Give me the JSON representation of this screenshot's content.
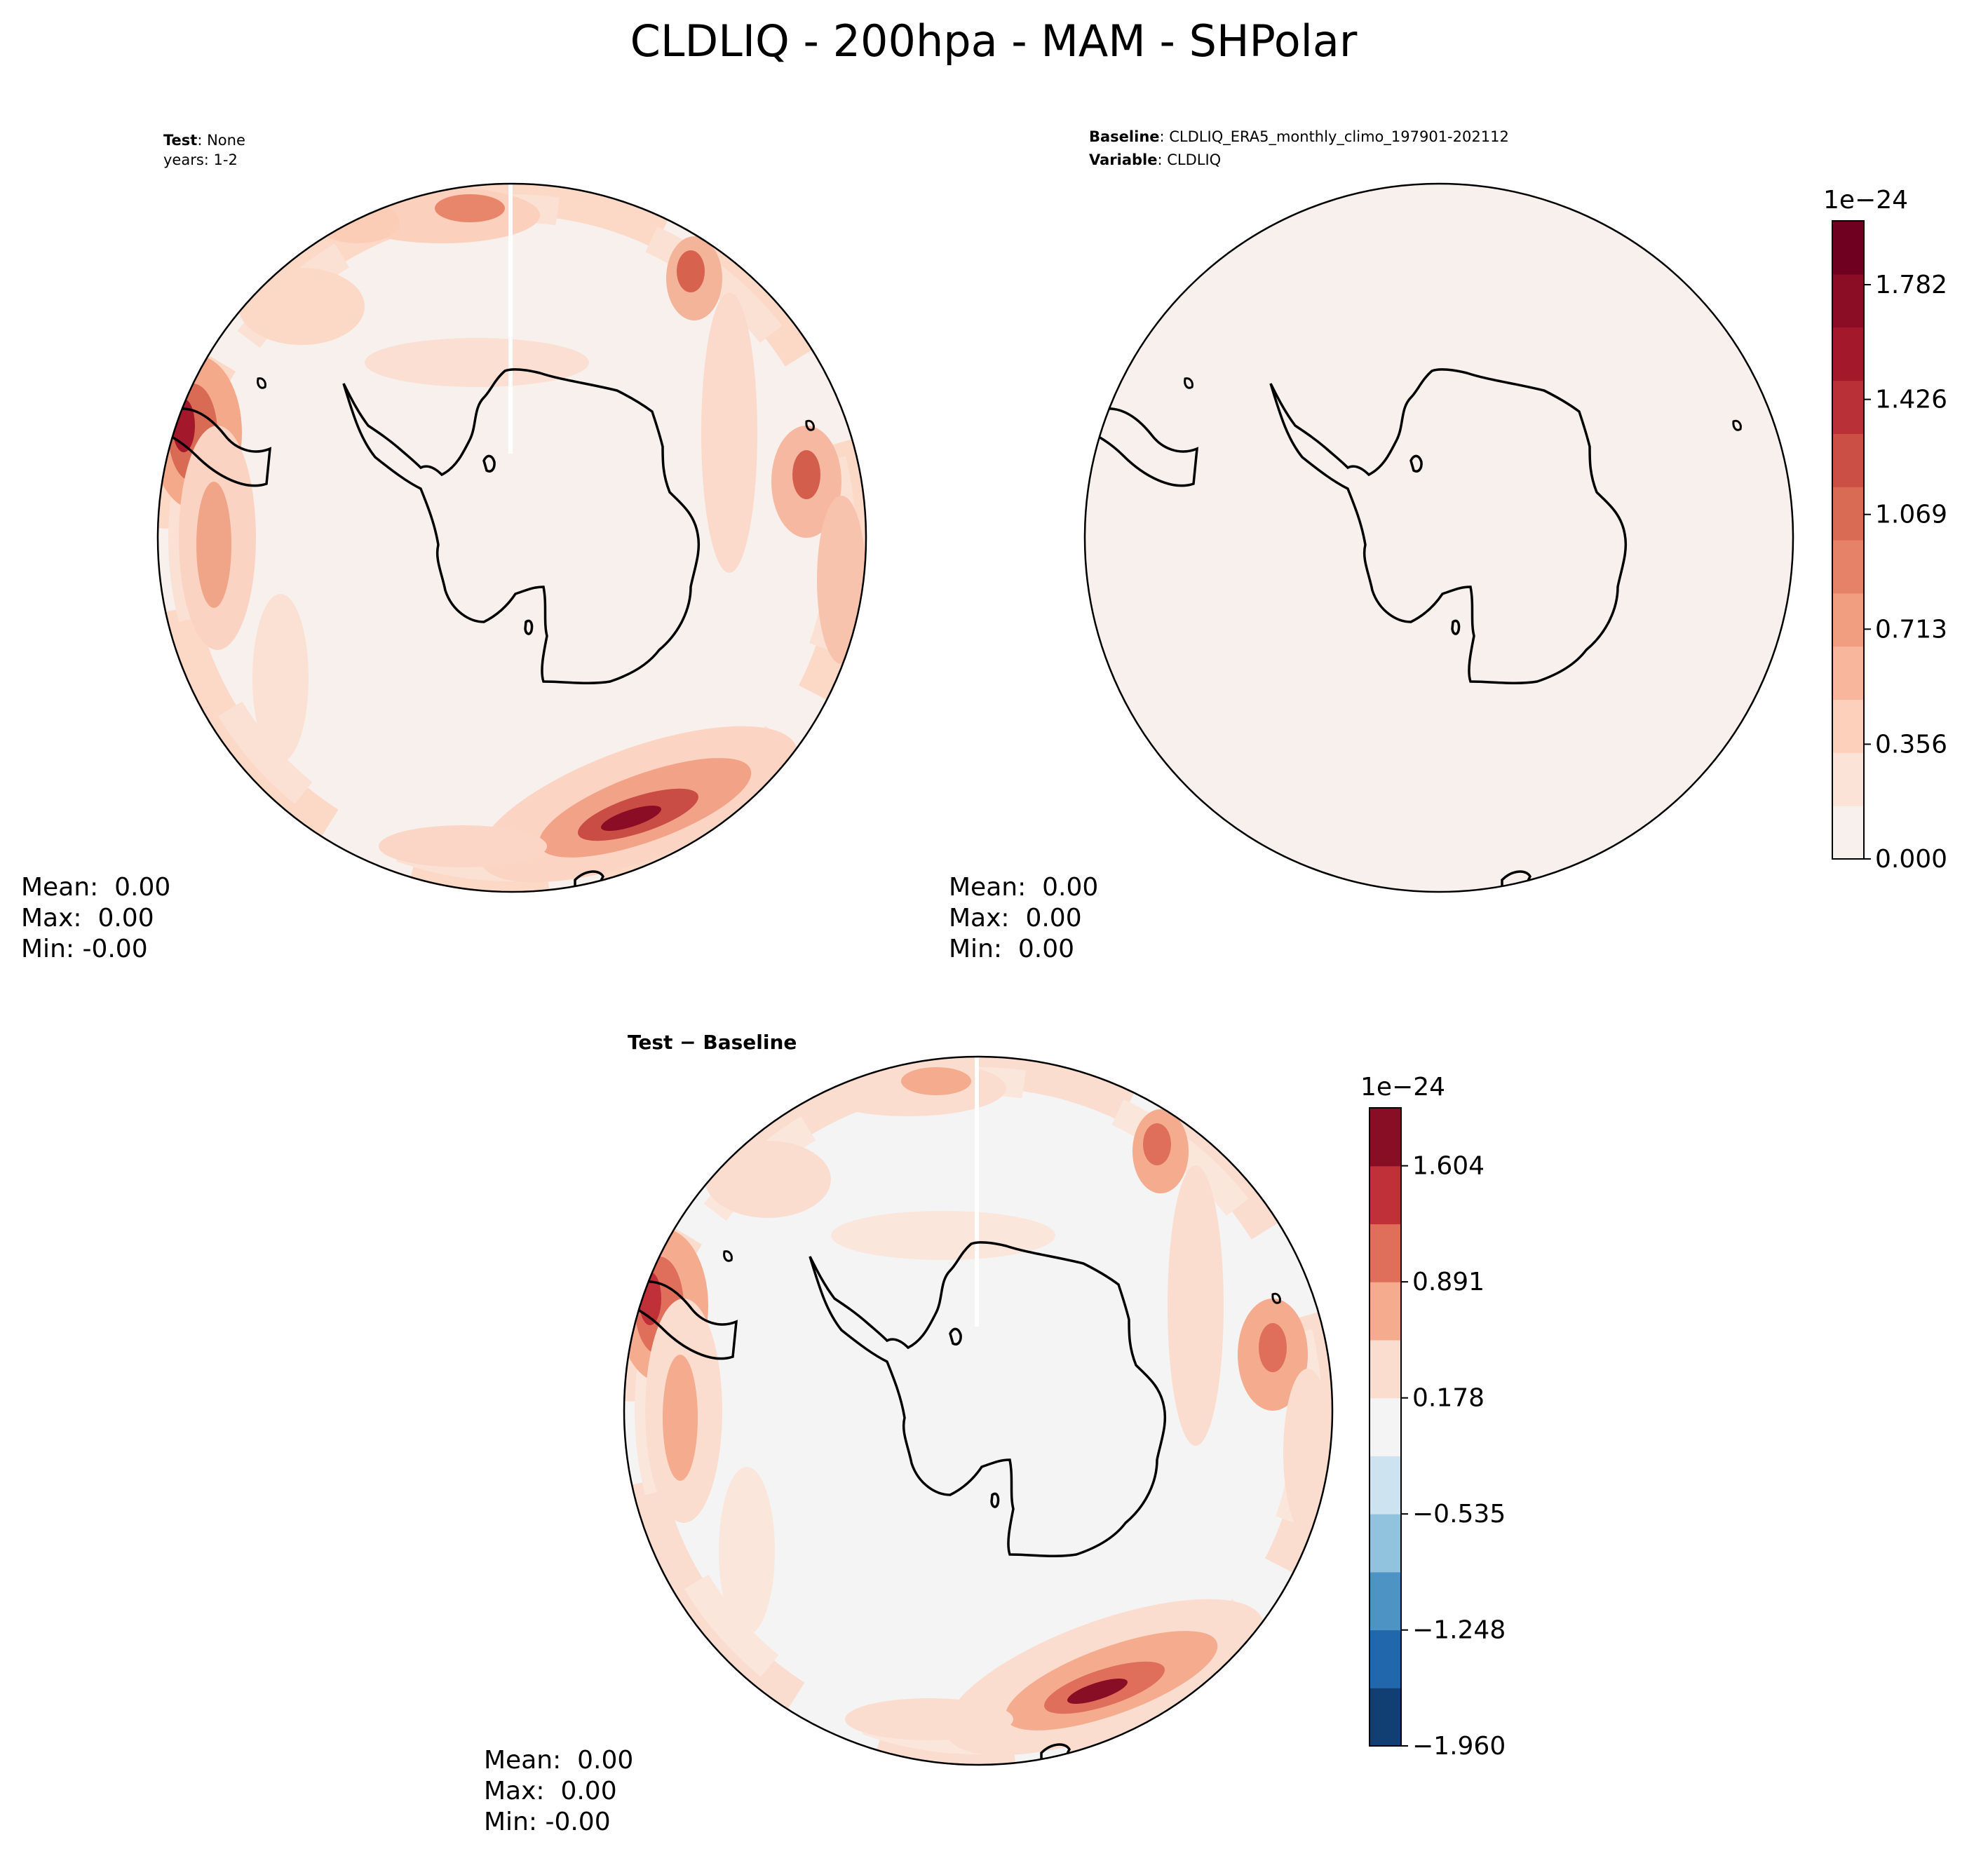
{
  "chart_data": {
    "type": "contour",
    "title": "CLDLIQ - 200hpa - MAM - SHPolar",
    "panels": [
      {
        "id": "test",
        "header": [
          {
            "bold": "Test",
            "text": ": None"
          },
          {
            "bold": "",
            "text": "years: 1-2"
          }
        ],
        "stats": [
          "Mean:  0.00",
          "Max:  0.00",
          "Min: -0.00"
        ]
      },
      {
        "id": "baseline",
        "header": [
          {
            "bold": "Baseline",
            "text": ": CLDLIQ_ERA5_monthly_climo_197901-202112"
          },
          {
            "bold": "Variable",
            "text": ": CLDLIQ"
          }
        ],
        "stats": [
          "Mean:  0.00",
          "Max:  0.00",
          "Min:  0.00"
        ]
      },
      {
        "id": "diff",
        "header": [
          {
            "bold": "Test − Baseline",
            "text": ""
          }
        ],
        "stats": [
          "Mean:  0.00",
          "Max:  0.00",
          "Min: -0.00"
        ]
      }
    ],
    "colorbars": [
      {
        "panel": "baseline",
        "exponent_label": "1e−24",
        "range": [
          0.0,
          1.98
        ],
        "tick_values": [
          0.0,
          0.356,
          0.713,
          1.069,
          1.426,
          1.782
        ],
        "tick_labels": [
          "0.000",
          "0.356",
          "0.713",
          "1.069",
          "1.426",
          "1.782"
        ],
        "colors": [
          "#f7f0ec",
          "#fbe3d8",
          "#fcd0bb",
          "#f8b79d",
          "#f09e7f",
          "#e58267",
          "#d96a54",
          "#cb4f45",
          "#b93036",
          "#a3182b",
          "#8a0d25",
          "#6f0020"
        ]
      },
      {
        "panel": "diff",
        "exponent_label": "1e−24",
        "range": [
          -1.96,
          1.96
        ],
        "tick_values": [
          -1.96,
          -1.248,
          -0.535,
          0.178,
          0.891,
          1.604
        ],
        "tick_labels": [
          "−1.960",
          "−1.248",
          "−0.535",
          "0.178",
          "0.891",
          "1.604"
        ],
        "colors": [
          "#113f74",
          "#2167ab",
          "#4d94c4",
          "#92c3de",
          "#cde3ef",
          "#f4f4f4",
          "#fbddd0",
          "#f4ab8e",
          "#df6e5b",
          "#bf3039",
          "#880e25"
        ]
      }
    ]
  }
}
